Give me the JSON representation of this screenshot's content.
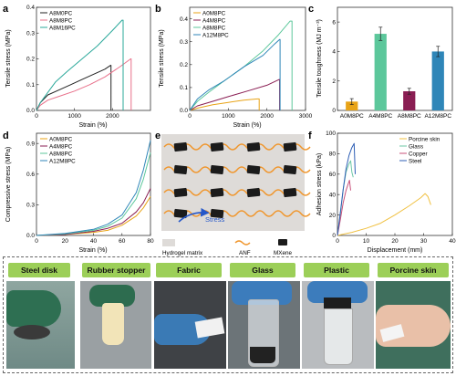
{
  "figure": {
    "panels": {
      "a": {
        "letter": "a",
        "legend": [
          "A$_8$M$_0$PC",
          "A$_8$M$_8$PC",
          "A$_8$M$_{16}$PC"
        ],
        "legend_display": [
          "A8M0PC",
          "A8M8PC",
          "A8M16PC"
        ],
        "xlabel": "Strain (%)",
        "ylabel": "Tensile stress (MPa)"
      },
      "b": {
        "letter": "b",
        "legend_display": [
          "A0M8PC",
          "A4M8PC",
          "A8M8PC",
          "A12M8PC"
        ],
        "xlabel": "Strain (%)",
        "ylabel": "Tensile stress (MPa)"
      },
      "c": {
        "letter": "c",
        "ylabel": "Tensile toughness (MJ m⁻³)"
      },
      "d": {
        "letter": "d",
        "legend_display": [
          "A0M8PC",
          "A4M8PC",
          "A8M8PC",
          "A12M8PC"
        ],
        "xlabel": "Strain (%)",
        "ylabel": "Compressive stress (MPa)"
      },
      "e": {
        "letter": "e",
        "arrow_label": "Stress",
        "legend": [
          "Hydrogel matrix",
          "ANF",
          "MXene"
        ]
      },
      "f": {
        "letter": "f",
        "legend_display": [
          "Porcine skin",
          "Glass",
          "Copper",
          "Steel"
        ],
        "xlabel": "Displacement (mm)",
        "ylabel": "Adhesion stress (kPa)"
      },
      "g": {
        "letter": "g",
        "labels": [
          "Steel disk",
          "Rubber stopper",
          "Fabric",
          "Glass",
          "Plastic",
          "Porcine skin"
        ]
      }
    },
    "colors": {
      "black": "#222222",
      "pink": "#e8708a",
      "teal": "#2aa89a",
      "orange": "#e8a316",
      "purple": "#8a1e53",
      "green": "#5cc79b",
      "blue": "#2f86b8",
      "porcine": "#f0c040",
      "glass": "#6cc7a5",
      "copper": "#c8507a",
      "steel": "#2f5fb5",
      "label_green": "#9ccf58"
    }
  },
  "chart_data": [
    {
      "id": "a",
      "type": "line",
      "xlabel": "Strain (%)",
      "ylabel": "Tensile stress (MPa)",
      "xlim": [
        0,
        3000
      ],
      "ylim": [
        0,
        0.4
      ],
      "xticks": [
        0,
        1000,
        2000
      ],
      "yticks": [
        0.0,
        0.1,
        0.2,
        0.3,
        0.4
      ],
      "series": [
        {
          "name": "A8M0PC",
          "x": [
            0,
            100,
            300,
            600,
            900,
            1200,
            1500,
            1800,
            1950,
            1960,
            1960
          ],
          "y": [
            0,
            0.03,
            0.06,
            0.08,
            0.1,
            0.12,
            0.14,
            0.16,
            0.175,
            0.175,
            0
          ]
        },
        {
          "name": "A8M8PC",
          "x": [
            0,
            100,
            300,
            600,
            1000,
            1400,
            1800,
            2200,
            2480,
            2490,
            2490
          ],
          "y": [
            0,
            0.02,
            0.04,
            0.055,
            0.075,
            0.1,
            0.13,
            0.17,
            0.2,
            0.2,
            0
          ]
        },
        {
          "name": "A8M16PC",
          "x": [
            0,
            100,
            300,
            500,
            800,
            1200,
            1600,
            2000,
            2250,
            2280,
            2280
          ],
          "y": [
            0,
            0.03,
            0.07,
            0.11,
            0.15,
            0.2,
            0.25,
            0.31,
            0.35,
            0.35,
            0
          ]
        }
      ]
    },
    {
      "id": "b",
      "type": "line",
      "xlabel": "Strain (%)",
      "ylabel": "Tensile stress (MPa)",
      "xlim": [
        0,
        3000
      ],
      "ylim": [
        0,
        0.45
      ],
      "xticks": [
        0,
        1000,
        2000,
        3000
      ],
      "yticks": [
        0.0,
        0.1,
        0.2,
        0.3,
        0.4
      ],
      "series": [
        {
          "name": "A0M8PC",
          "x": [
            0,
            200,
            600,
            1000,
            1400,
            1750,
            1800,
            1800
          ],
          "y": [
            0,
            0.01,
            0.025,
            0.035,
            0.045,
            0.05,
            0.05,
            0
          ]
        },
        {
          "name": "A4M8PC",
          "x": [
            0,
            200,
            600,
            1000,
            1500,
            2000,
            2320,
            2330,
            2330
          ],
          "y": [
            0,
            0.02,
            0.04,
            0.06,
            0.085,
            0.11,
            0.135,
            0.135,
            0
          ]
        },
        {
          "name": "A8M8PC",
          "x": [
            0,
            200,
            500,
            900,
            1400,
            1900,
            2300,
            2600,
            2650,
            2650
          ],
          "y": [
            0,
            0.04,
            0.08,
            0.13,
            0.19,
            0.26,
            0.33,
            0.39,
            0.39,
            0
          ]
        },
        {
          "name": "A12M8PC",
          "x": [
            0,
            200,
            500,
            900,
            1400,
            1900,
            2200,
            2330,
            2340,
            2340
          ],
          "y": [
            0,
            0.05,
            0.09,
            0.13,
            0.19,
            0.24,
            0.29,
            0.31,
            0.31,
            0
          ]
        }
      ]
    },
    {
      "id": "c",
      "type": "bar",
      "ylabel": "Tensile toughness (MJ m⁻³)",
      "categories": [
        "A0M8PC",
        "A4M8PC",
        "A8M8PC",
        "A12M8PC"
      ],
      "values": [
        0.6,
        5.2,
        1.3,
        4.0
      ],
      "errors": [
        0.2,
        0.45,
        0.2,
        0.35
      ],
      "ylim": [
        0,
        7
      ],
      "yticks": [
        0,
        2,
        4,
        6
      ]
    },
    {
      "id": "d",
      "type": "line",
      "xlabel": "Strain (%)",
      "ylabel": "Compressive stress (MPa)",
      "xlim": [
        0,
        80
      ],
      "ylim": [
        0,
        1.0
      ],
      "xticks": [
        0,
        20,
        40,
        60,
        80
      ],
      "yticks": [
        0.0,
        0.3,
        0.6,
        0.9
      ],
      "series": [
        {
          "name": "A0M8PC",
          "x": [
            0,
            20,
            40,
            50,
            60,
            70,
            75,
            80
          ],
          "y": [
            0,
            0.01,
            0.03,
            0.05,
            0.1,
            0.19,
            0.27,
            0.38
          ]
        },
        {
          "name": "A4M8PC",
          "x": [
            0,
            20,
            40,
            50,
            60,
            70,
            75,
            80
          ],
          "y": [
            0,
            0.01,
            0.04,
            0.07,
            0.12,
            0.23,
            0.32,
            0.46
          ]
        },
        {
          "name": "A8M8PC",
          "x": [
            0,
            20,
            40,
            50,
            60,
            70,
            75,
            80
          ],
          "y": [
            0,
            0.015,
            0.05,
            0.09,
            0.17,
            0.36,
            0.55,
            0.81
          ]
        },
        {
          "name": "A12M8PC",
          "x": [
            0,
            20,
            40,
            50,
            60,
            70,
            75,
            80
          ],
          "y": [
            0,
            0.02,
            0.06,
            0.11,
            0.2,
            0.42,
            0.64,
            0.93
          ]
        }
      ]
    },
    {
      "id": "f",
      "type": "line",
      "xlabel": "Displacement (mm)",
      "ylabel": "Adhesion stress (kPa)",
      "xlim": [
        0,
        40
      ],
      "ylim": [
        0,
        100
      ],
      "xticks": [
        0,
        10,
        20,
        30,
        40
      ],
      "yticks": [
        0,
        20,
        40,
        60,
        80,
        100
      ],
      "series": [
        {
          "name": "Porcine skin",
          "x": [
            0,
            5,
            10,
            15,
            20,
            25,
            29,
            30.5,
            31.5,
            32.5
          ],
          "y": [
            0,
            3,
            7,
            12,
            20,
            29,
            37,
            41,
            38,
            30
          ]
        },
        {
          "name": "Glass",
          "x": [
            0,
            1,
            2,
            3,
            4,
            4.6,
            5.0,
            5.5
          ],
          "y": [
            0,
            20,
            45,
            62,
            70,
            73,
            62,
            57
          ]
        },
        {
          "name": "Copper",
          "x": [
            0,
            1,
            2,
            3,
            3.8,
            4.2,
            4.6
          ],
          "y": [
            0,
            15,
            32,
            44,
            51,
            54,
            44
          ]
        },
        {
          "name": "Steel",
          "x": [
            0,
            1,
            2,
            3,
            4,
            5,
            5.8,
            6.2
          ],
          "y": [
            0,
            22,
            45,
            65,
            78,
            86,
            90,
            60
          ]
        }
      ]
    }
  ]
}
